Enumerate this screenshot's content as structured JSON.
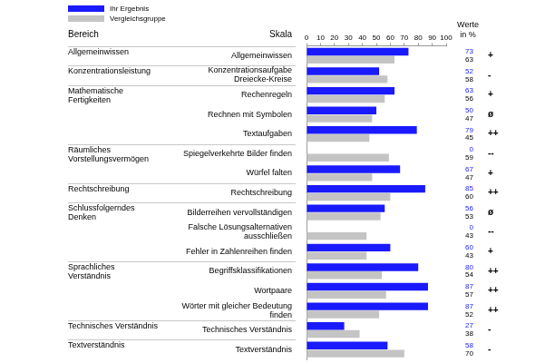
{
  "chart_data": {
    "type": "bar",
    "orientation": "horizontal",
    "column_headers": {
      "group": "Bereich",
      "category": "Skala",
      "values": [
        "Werte",
        "in %"
      ]
    },
    "categories": [
      "Allgemeinwissen",
      "Konzentrationsaufgabe Dreiecke-Kreise",
      "Rechenregeln",
      "Rechnen mit Symbolen",
      "Textaufgaben",
      "Spiegelverkehrte Bilder finden",
      "Würfel falten",
      "Rechtschreibung",
      "Bilderreihen vervollständigen",
      "Falsche Lösungsalternativen ausschließen",
      "Fehler in Zahlenreihen finden",
      "Begriffsklassifikationen",
      "Wortpaare",
      "Wörter mit gleicher Bedeutung finden",
      "Technisches Verständnis",
      "Textverständnis"
    ],
    "groups": [
      "Allgemeinwissen",
      "Konzentrationsleistung",
      "Mathematische Fertigkeiten",
      null,
      null,
      "Räumliches Vorstellungsvermögen",
      null,
      "Rechtschreibung",
      "Schlussfolgerndes Denken",
      null,
      null,
      "Sprachliches Verständnis",
      null,
      null,
      "Technisches Verständnis",
      "Textverständnis"
    ],
    "series": [
      {
        "name": "Ihr Ergebnis",
        "color": "#1a1aff",
        "values": [
          73,
          52,
          63,
          50,
          79,
          0,
          67,
          85,
          56,
          0,
          60,
          80,
          87,
          87,
          27,
          58
        ]
      },
      {
        "name": "Vergleichsgruppe",
        "color": "#c4c4c4",
        "values": [
          63,
          58,
          56,
          47,
          45,
          59,
          47,
          60,
          53,
          43,
          43,
          54,
          57,
          52,
          38,
          70
        ]
      }
    ],
    "ratings": [
      "+",
      "-",
      "+",
      "ø",
      "++",
      "--",
      "+",
      "++",
      "ø",
      "--",
      "+",
      "++",
      "++",
      "++",
      "-",
      "-"
    ],
    "xlim": [
      0,
      100
    ],
    "xticks": [
      0,
      10,
      20,
      30,
      40,
      50,
      60,
      70,
      80,
      90,
      100
    ],
    "grid": false,
    "legend": "top-left",
    "data_labels": true
  }
}
